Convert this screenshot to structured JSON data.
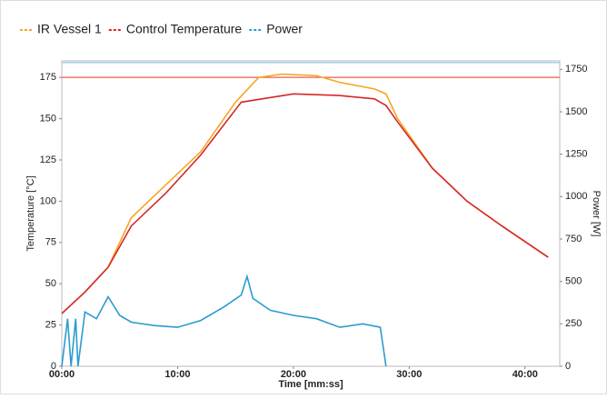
{
  "chart_data": {
    "type": "line",
    "xlabel": "Time [mm:ss]",
    "ylabel": "Temperature [°C]",
    "y2label": "Power [W]",
    "xlim": [
      0,
      43
    ],
    "ylim": [
      0,
      185
    ],
    "y2lim": [
      0,
      1800
    ],
    "xticks": [
      {
        "value": 0,
        "label": "00:00"
      },
      {
        "value": 10,
        "label": "10:00"
      },
      {
        "value": 20,
        "label": "20:00"
      },
      {
        "value": 30,
        "label": "30:00"
      },
      {
        "value": 40,
        "label": "40:00"
      }
    ],
    "yticks": [
      0,
      25,
      50,
      75,
      100,
      125,
      150,
      175
    ],
    "y2ticks": [
      0,
      250,
      500,
      750,
      1000,
      1250,
      1500,
      1750
    ],
    "hlines": [
      {
        "value": 175,
        "color": "#e8604c"
      },
      {
        "value": 1790,
        "color": "#8fc9e8",
        "axis": "y2"
      }
    ],
    "series": [
      {
        "name": "IR Vessel 1",
        "color": "#f5a623",
        "x": [
          0,
          2,
          4,
          6,
          9,
          12,
          15,
          17,
          19,
          22,
          24,
          27,
          28,
          29,
          32,
          35,
          38,
          42
        ],
        "values": [
          32,
          45,
          60,
          90,
          110,
          130,
          160,
          175,
          177,
          176,
          172,
          168,
          165,
          150,
          120,
          100,
          85,
          66
        ]
      },
      {
        "name": "Control Temperature",
        "color": "#d62728",
        "x": [
          0,
          2,
          4,
          6,
          9,
          12,
          15.5,
          20,
          24,
          27,
          28,
          29,
          32,
          35,
          38,
          42
        ],
        "values": [
          32,
          45,
          60,
          85,
          105,
          128,
          160,
          165,
          164,
          162,
          158,
          148,
          120,
          100,
          85,
          66
        ]
      },
      {
        "name": "Power",
        "color": "#2b9bd2",
        "axis": "y2",
        "x": [
          0,
          0.5,
          0.8,
          1.2,
          1.4,
          2,
          3,
          4,
          5,
          6,
          8,
          10,
          12,
          14,
          15.5,
          16,
          16.5,
          18,
          20,
          22,
          24,
          26,
          27.5,
          28
        ],
        "values": [
          0,
          280,
          0,
          280,
          0,
          320,
          280,
          410,
          300,
          260,
          240,
          230,
          270,
          350,
          420,
          530,
          400,
          330,
          300,
          280,
          230,
          250,
          230,
          0
        ]
      }
    ]
  }
}
